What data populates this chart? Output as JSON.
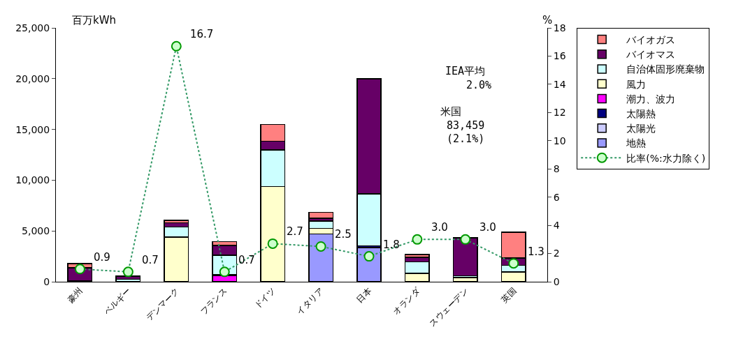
{
  "chart_data": {
    "type": "bar",
    "stacked": true,
    "ylabel": "百万kWh",
    "y2label": "%",
    "categories": [
      "豪州",
      "ベルギー",
      "デンマーク",
      "フランス",
      "ドイツ",
      "イタリア",
      "日本",
      "オランダ",
      "スウェーデン",
      "英国"
    ],
    "series": [
      {
        "name": "地熱",
        "color": "#9999ff",
        "values": [
          null,
          null,
          null,
          null,
          null,
          4710,
          3350,
          null,
          null,
          null
        ]
      },
      {
        "name": "太陽光",
        "color": "#ccccff",
        "values": [
          null,
          null,
          null,
          null,
          null,
          null,
          null,
          null,
          null,
          null
        ]
      },
      {
        "name": "太陽熱",
        "color": "#000080",
        "values": [
          null,
          null,
          null,
          null,
          null,
          null,
          200,
          null,
          null,
          null
        ]
      },
      {
        "name": "潮力、波力",
        "color": "#ff00ff",
        "values": [
          null,
          null,
          null,
          600,
          null,
          null,
          null,
          null,
          null,
          null
        ]
      },
      {
        "name": "風力",
        "color": "#ffffcc",
        "values": [
          80,
          null,
          4400,
          100,
          9360,
          550,
          null,
          815,
          420,
          970
        ]
      },
      {
        "name": "自治体固形廃棄物",
        "color": "#ccffff",
        "values": [
          null,
          250,
          1000,
          1920,
          3630,
          730,
          5110,
          1150,
          180,
          660
        ]
      },
      {
        "name": "バイオマス",
        "color": "#660066",
        "values": [
          1300,
          250,
          420,
          950,
          860,
          260,
          11320,
          440,
          3720,
          700
        ]
      },
      {
        "name": "バイオガス",
        "color": "#ff8080",
        "values": [
          400,
          100,
          220,
          370,
          1650,
          600,
          null,
          290,
          null,
          2560
        ]
      },
      {
        "name": "比率(%:水力除く)",
        "type": "line",
        "axis": "y2",
        "color": "#339966",
        "marker": "circle",
        "line_style": "dotted",
        "values": [
          0.9,
          0.7,
          16.7,
          0.7,
          2.7,
          2.5,
          1.8,
          3.0,
          3.0,
          1.3
        ],
        "value_labels": [
          "0.9",
          "0.7",
          "16.7",
          "0.7",
          "2.7",
          "2.5",
          "1.8",
          "3.0",
          "3.0",
          "1.3"
        ]
      }
    ],
    "ylim": [
      0,
      25000
    ],
    "yticks": [
      {
        "value": 0,
        "label": "0"
      },
      {
        "value": 5000,
        "label": "5,000"
      },
      {
        "value": 10000,
        "label": "10,000"
      },
      {
        "value": 15000,
        "label": "15,000"
      },
      {
        "value": 20000,
        "label": "20,000"
      },
      {
        "value": 25000,
        "label": "25,000"
      }
    ],
    "y2lim": [
      0,
      18
    ],
    "y2ticks": [
      0,
      2,
      4,
      6,
      8,
      10,
      12,
      14,
      16,
      18
    ],
    "annotations": [
      "IEA平均\n　　2.0%",
      "米国\n 83,459\n (2.1%)"
    ],
    "legend": "right"
  }
}
